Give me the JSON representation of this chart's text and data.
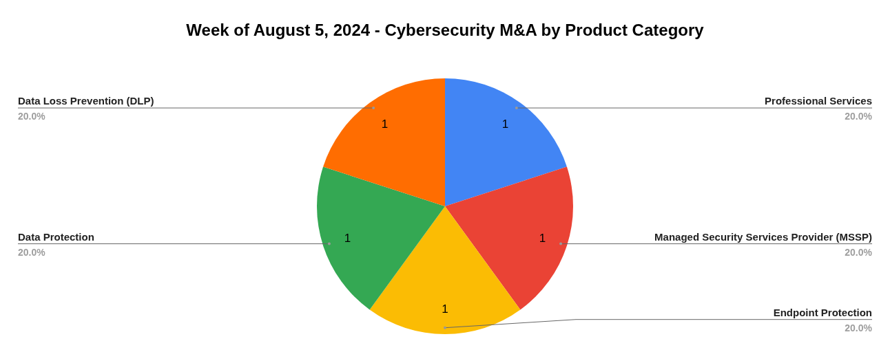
{
  "chart_data": {
    "type": "pie",
    "title": "Week of August 5, 2024 - Cybersecurity M&A by Product Category",
    "categories": [
      "Professional Services",
      "Managed Security Services Provider (MSSP)",
      "Endpoint Protection",
      "Data Protection",
      "Data Loss Prevention (DLP)"
    ],
    "values": [
      20,
      20,
      20,
      20,
      20
    ],
    "colors": [
      "#4285f4",
      "#ea4335",
      "#fbbc04",
      "#34a853",
      "#ff6d01"
    ],
    "value_labels": [
      "20.0%",
      "20.0%",
      "20.0%",
      "20.0%",
      "20.0%"
    ],
    "annotations": [
      {
        "text": "1",
        "x": "Professional Services"
      },
      {
        "text": "1",
        "x": "Managed Security Services Provider (MSSP)"
      },
      {
        "text": "1",
        "x": "Endpoint Protection"
      },
      {
        "text": "1",
        "x": "Data Protection"
      },
      {
        "text": "1",
        "x": "Data Loss Prevention (DLP)"
      }
    ]
  }
}
